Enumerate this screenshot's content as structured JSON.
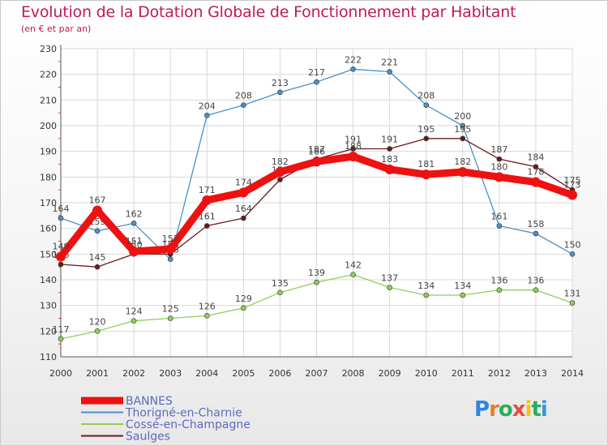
{
  "title": "Evolution de la Dotation Globale de Fonctionnement par Habitant",
  "subtitle": "(en € et par an)",
  "logo": {
    "letters": [
      "P",
      "r",
      "o",
      "x",
      "i",
      "t",
      "i"
    ],
    "colors": [
      "#2e86de",
      "#e67e22",
      "#27ae60",
      "#e74c3c",
      "#f1c40f",
      "#27ae60",
      "#3498db"
    ]
  },
  "chart_data": {
    "type": "line",
    "x": [
      "2000",
      "2001",
      "2002",
      "2003",
      "2004",
      "2005",
      "2006",
      "2007",
      "2008",
      "2009",
      "2010",
      "2011",
      "2012",
      "2013",
      "2014"
    ],
    "ylim": [
      110,
      230
    ],
    "yticks": [
      110,
      120,
      130,
      140,
      150,
      160,
      170,
      180,
      190,
      200,
      210,
      220,
      230
    ],
    "grid": true,
    "legend_position": "bottom-left",
    "series": [
      {
        "name": "BANNES",
        "color": "#ee1111",
        "values": [
          149,
          167,
          151,
          152,
          171,
          174,
          182,
          186,
          188,
          183,
          181,
          182,
          180,
          178,
          173
        ]
      },
      {
        "name": "Thorigné-en-Charnie",
        "color": "#4a90c8",
        "values": [
          164,
          159,
          162,
          148,
          204,
          208,
          213,
          217,
          222,
          221,
          208,
          200,
          161,
          158,
          150
        ]
      },
      {
        "name": "Cossé-en-Champagne",
        "color": "#8bd05a",
        "values": [
          117,
          120,
          124,
          125,
          126,
          129,
          135,
          139,
          142,
          137,
          134,
          134,
          136,
          136,
          131
        ]
      },
      {
        "name": "Saulges",
        "color": "#6b1a1a",
        "values": [
          146,
          145,
          150,
          150,
          161,
          164,
          179,
          187,
          191,
          191,
          195,
          195,
          187,
          184,
          175
        ]
      }
    ]
  }
}
